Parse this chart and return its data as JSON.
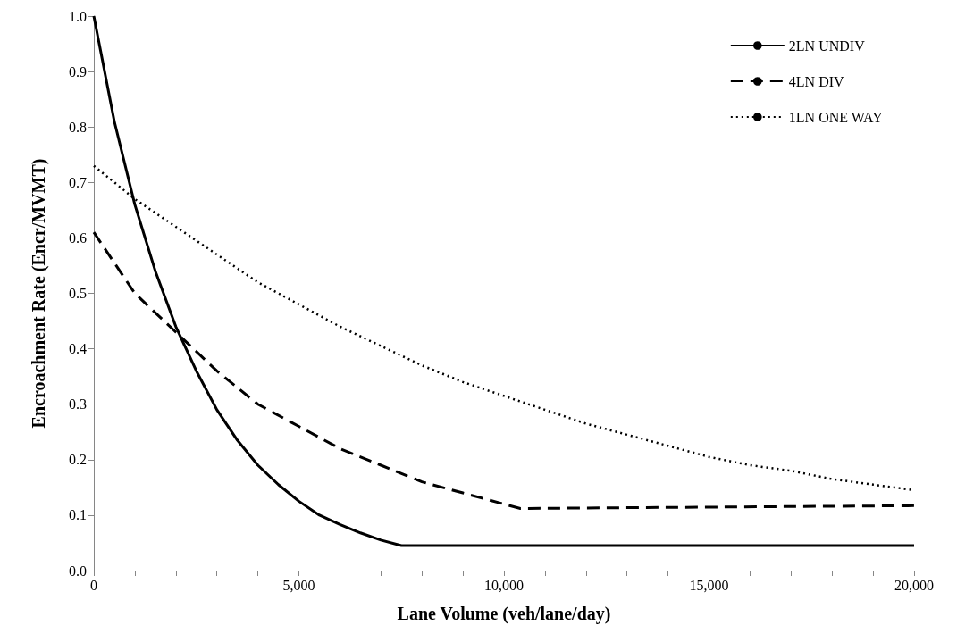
{
  "chart_data": {
    "type": "line",
    "xlabel": "Lane Volume (veh/lane/day)",
    "ylabel": "Encroachment Rate (Encr/MVMT)",
    "xlim": [
      0,
      20000
    ],
    "xticks": [
      {
        "value": 0,
        "label": "0"
      },
      {
        "value": 1000,
        "label": null
      },
      {
        "value": 2000,
        "label": null
      },
      {
        "value": 3000,
        "label": null
      },
      {
        "value": 4000,
        "label": null
      },
      {
        "value": 5000,
        "label": "5,000"
      },
      {
        "value": 6000,
        "label": null
      },
      {
        "value": 7000,
        "label": null
      },
      {
        "value": 8000,
        "label": null
      },
      {
        "value": 9000,
        "label": null
      },
      {
        "value": 10000,
        "label": "10,000"
      },
      {
        "value": 11000,
        "label": null
      },
      {
        "value": 12000,
        "label": null
      },
      {
        "value": 13000,
        "label": null
      },
      {
        "value": 14000,
        "label": null
      },
      {
        "value": 15000,
        "label": "15,000"
      },
      {
        "value": 16000,
        "label": null
      },
      {
        "value": 17000,
        "label": null
      },
      {
        "value": 18000,
        "label": null
      },
      {
        "value": 19000,
        "label": null
      },
      {
        "value": 20000,
        "label": "20,000"
      }
    ],
    "ylim": [
      0,
      1
    ],
    "yticks": [
      {
        "value": 0,
        "label": "0.0"
      },
      0.1,
      0.2,
      0.3,
      0.4,
      0.5,
      0.6,
      0.7,
      0.8,
      0.9,
      {
        "value": 1,
        "label": "1.0"
      }
    ],
    "grid": false,
    "legend": "top right",
    "marker": "none",
    "series": [
      {
        "name": "2LN UNDIV",
        "color": "#000000",
        "line_style": "solid",
        "x": [
          0,
          500,
          1000,
          1500,
          2000,
          2500,
          3000,
          3500,
          4000,
          4500,
          5000,
          5500,
          6000,
          6500,
          7000,
          7500,
          20000
        ],
        "values": [
          1.0,
          0.81,
          0.66,
          0.54,
          0.44,
          0.36,
          0.29,
          0.235,
          0.19,
          0.155,
          0.125,
          0.1,
          0.083,
          0.068,
          0.055,
          0.045,
          0.045
        ]
      },
      {
        "name": "4LN DIV",
        "color": "#000000",
        "line_style": "dashed",
        "x": [
          0,
          1000,
          2000,
          3000,
          4000,
          5000,
          6000,
          7000,
          8000,
          9000,
          10000,
          10400,
          20000
        ],
        "values": [
          0.61,
          0.5,
          0.43,
          0.36,
          0.3,
          0.26,
          0.22,
          0.19,
          0.16,
          0.14,
          0.12,
          0.112,
          0.117
        ]
      },
      {
        "name": "1LN ONE WAY",
        "color": "#000000",
        "line_style": "dotted",
        "x": [
          0,
          1000,
          2000,
          3000,
          4000,
          5000,
          6000,
          7000,
          8000,
          9000,
          10000,
          11000,
          12000,
          13000,
          14000,
          15000,
          16000,
          17000,
          18000,
          19000,
          20000
        ],
        "values": [
          0.73,
          0.67,
          0.62,
          0.57,
          0.52,
          0.48,
          0.44,
          0.405,
          0.37,
          0.34,
          0.315,
          0.29,
          0.265,
          0.245,
          0.225,
          0.205,
          0.19,
          0.18,
          0.165,
          0.155,
          0.145
        ]
      }
    ]
  }
}
